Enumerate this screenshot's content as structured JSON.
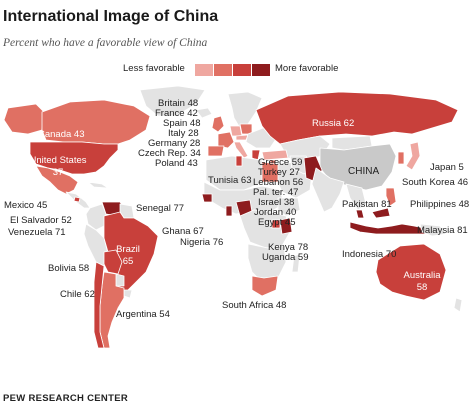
{
  "title": "International Image of China",
  "subtitle": "Percent who have a favorable view of China",
  "legend": {
    "low_label": "Less favorable",
    "high_label": "More favorable",
    "colors": [
      "#efa7a0",
      "#e07063",
      "#c8403b",
      "#8e1c1e"
    ]
  },
  "colors": {
    "land": "#e3e3e3",
    "china": "#c9c9c9",
    "ocean": "#ffffff",
    "border": "#ffffff"
  },
  "labels": {
    "canada": "Canada 43",
    "us_name": "United States",
    "us_val": "37",
    "mexico": "Mexico 45",
    "elsalvador": "El Salvador 52",
    "venezuela": "Venezuela 71",
    "brazil_name": "Brazil",
    "brazil_val": "65",
    "bolivia": "Bolivia 58",
    "chile": "Chile 62",
    "argentina": "Argentina 54",
    "britain": "Britain 48",
    "france": "France 42",
    "spain": "Spain 48",
    "italy": "Italy 28",
    "germany": "Germany 28",
    "czech": "Czech Rep. 34",
    "poland": "Poland 43",
    "russia": "Russia 62",
    "greece": "Greece 59",
    "turkey": "Turkey 27",
    "lebanon": "Lebanon 56",
    "palter": "Pal. ter. 47",
    "israel": "Israel 38",
    "jordan": "Jordan 40",
    "egypt": "Egypt 45",
    "tunisia": "Tunisia 63",
    "senegal": "Senegal 77",
    "ghana": "Ghana 67",
    "nigeria": "Nigeria 76",
    "kenya": "Kenya 78",
    "uganda": "Uganda 59",
    "southafrica": "South Africa 48",
    "china": "CHINA",
    "japan": "Japan 5",
    "southkorea": "South Korea 46",
    "pakistan": "Pakistan 81",
    "philippines": "Philippines 48",
    "malaysia": "Malaysia 81",
    "indonesia": "Indonesia 70",
    "australia_name": "Australia",
    "australia_val": "58"
  },
  "footer": "PEW RESEARCH CENTER"
}
